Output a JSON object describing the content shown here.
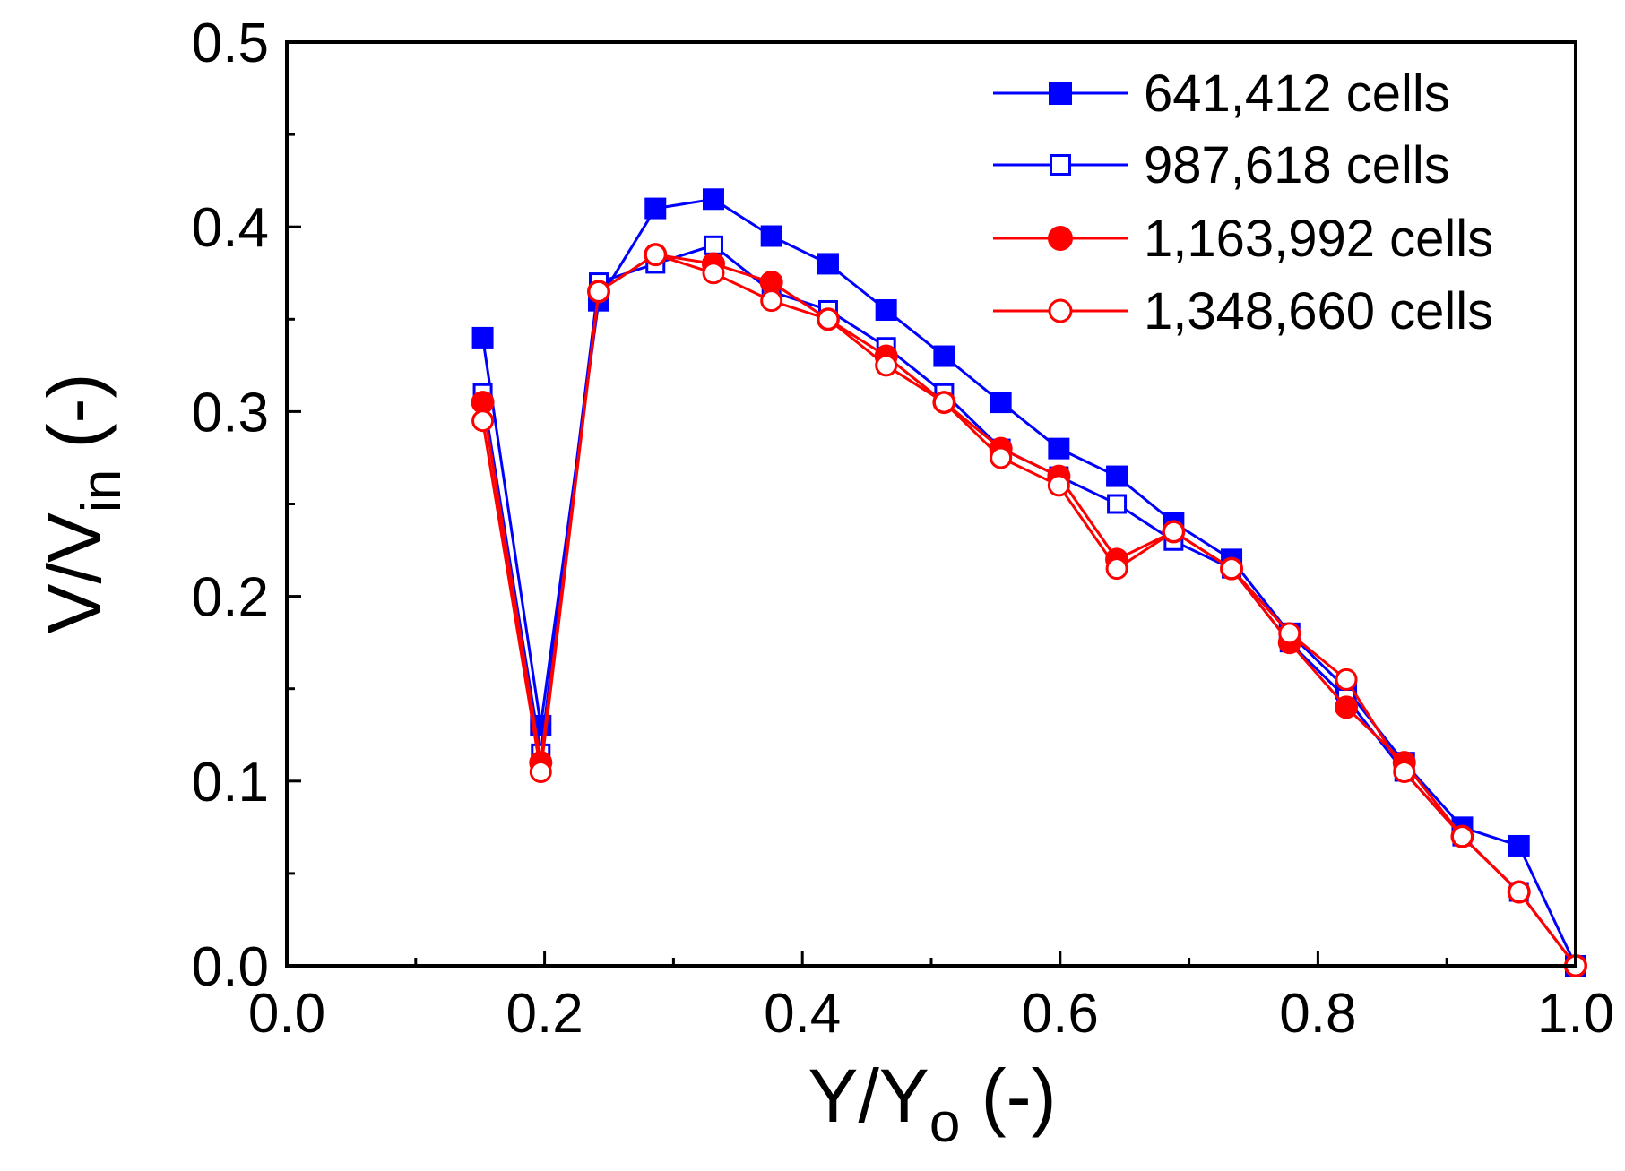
{
  "chart_data": {
    "type": "line",
    "xlabel": {
      "main": "Y/Y",
      "sub": "o",
      "suffix": " (-)"
    },
    "ylabel": {
      "main": "V/V",
      "sub": "in",
      "suffix": " (-)"
    },
    "xlim": [
      0.0,
      1.0
    ],
    "ylim": [
      0.0,
      0.5
    ],
    "x_ticks": [
      "0.0",
      "0.2",
      "0.4",
      "0.6",
      "0.8",
      "1.0"
    ],
    "y_ticks": [
      "0.0",
      "0.1",
      "0.2",
      "0.3",
      "0.4",
      "0.5"
    ],
    "grid": false,
    "legend_position": "top-right",
    "x": [
      0.152,
      0.197,
      0.242,
      0.286,
      0.331,
      0.376,
      0.42,
      0.465,
      0.51,
      0.554,
      0.599,
      0.644,
      0.688,
      0.733,
      0.778,
      0.822,
      0.867,
      0.912,
      0.956,
      1.0
    ],
    "series": [
      {
        "name": "641,412 cells",
        "color": "#0000ff",
        "marker": "square-filled",
        "values": [
          0.34,
          0.13,
          0.36,
          0.41,
          0.415,
          0.395,
          0.38,
          0.355,
          0.33,
          0.305,
          0.28,
          0.265,
          0.24,
          0.22,
          0.18,
          0.15,
          0.11,
          0.075,
          0.065,
          0.0
        ]
      },
      {
        "name": "987,618 cells",
        "color": "#0000ff",
        "marker": "square-open",
        "values": [
          0.31,
          0.115,
          0.37,
          0.38,
          0.39,
          0.365,
          0.355,
          0.335,
          0.31,
          0.28,
          0.265,
          0.25,
          0.23,
          0.215,
          0.175,
          0.145,
          0.105,
          0.07,
          0.04,
          0.0
        ]
      },
      {
        "name": "1,163,992 cells",
        "color": "#ff0000",
        "marker": "circle-filled",
        "values": [
          0.305,
          0.11,
          0.365,
          0.385,
          0.38,
          0.37,
          0.35,
          0.33,
          0.305,
          0.28,
          0.265,
          0.22,
          0.235,
          0.215,
          0.175,
          0.14,
          0.11,
          0.07,
          0.04,
          0.0
        ]
      },
      {
        "name": "1,348,660 cells",
        "color": "#ff0000",
        "marker": "circle-open",
        "values": [
          0.295,
          0.105,
          0.365,
          0.385,
          0.375,
          0.36,
          0.35,
          0.325,
          0.305,
          0.275,
          0.26,
          0.215,
          0.235,
          0.215,
          0.18,
          0.155,
          0.105,
          0.07,
          0.04,
          0.0
        ]
      }
    ]
  }
}
